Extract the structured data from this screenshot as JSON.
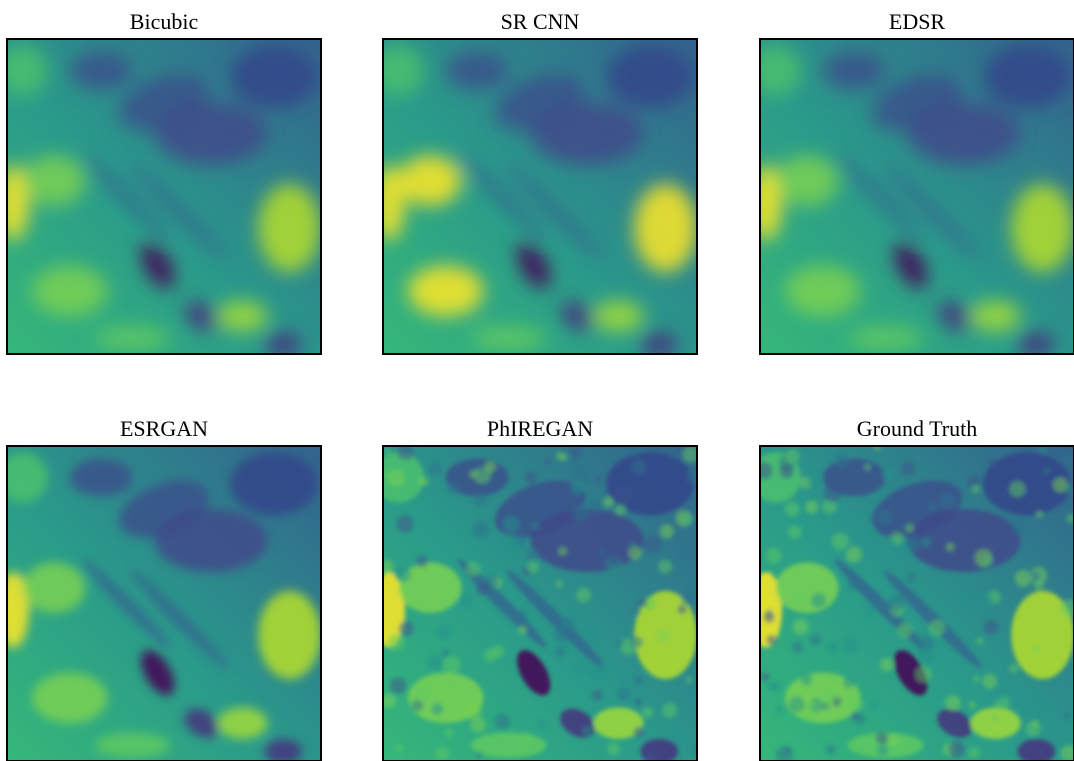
{
  "panels": [
    {
      "title": "Bicubic"
    },
    {
      "title": "SR CNN"
    },
    {
      "title": "EDSR"
    },
    {
      "title": "ESRGAN"
    },
    {
      "title": "PhIREGAN"
    },
    {
      "title": "Ground Truth"
    }
  ]
}
